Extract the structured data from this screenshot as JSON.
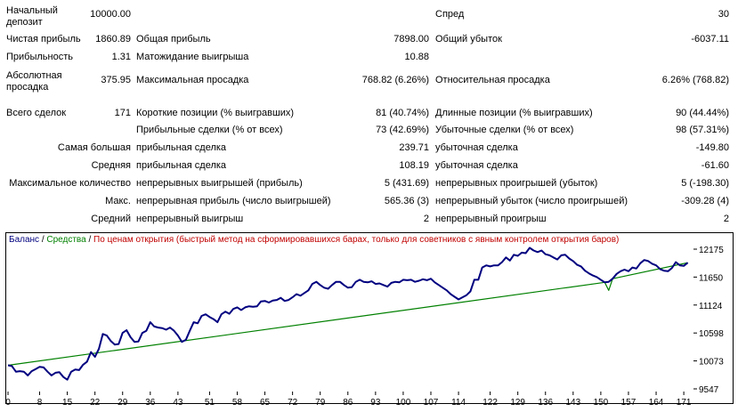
{
  "report": {
    "initial_deposit_label": [
      "Начальный",
      "депозит"
    ],
    "initial_deposit_value": "10000.00",
    "spread_label": "Спред",
    "spread_value": "30",
    "net_profit_label": "Чистая прибыль",
    "net_profit_value": "1860.89",
    "gross_profit_label": "Общая прибыль",
    "gross_profit_value": "7898.00",
    "gross_loss_label": "Общий убыток",
    "gross_loss_value": "-6037.11",
    "profit_factor_label": "Прибыльность",
    "profit_factor_value": "1.31",
    "expected_payoff_label": "Матожидание выигрыша",
    "expected_payoff_value": "10.88",
    "abs_drawdown_label": [
      "Абсолютная",
      "просадка"
    ],
    "abs_drawdown_value": "375.95",
    "max_drawdown_label": "Максимальная просадка",
    "max_drawdown_value": "768.82 (6.26%)",
    "rel_drawdown_label": "Относительная просадка",
    "rel_drawdown_value": "6.26% (768.82)",
    "total_trades_label": "Всего сделок",
    "total_trades_value": "171",
    "short_label": "Короткие позиции (% выигравших)",
    "short_value": "81 (40.74%)",
    "long_label": "Длинные позиции (% выигравших)",
    "long_value": "90 (44.44%)",
    "profit_trades_label": "Прибыльные сделки (% от всех)",
    "profit_trades_value": "73 (42.69%)",
    "loss_trades_label": "Убыточные сделки (% от всех)",
    "loss_trades_value": "98 (57.31%)",
    "largest_label": "Самая большая",
    "largest_profit_label": "прибыльная сделка",
    "largest_profit_value": "239.71",
    "largest_loss_label": "убыточная сделка",
    "largest_loss_value": "-149.80",
    "average_label": "Средняя",
    "average_profit_label": "прибыльная сделка",
    "average_profit_value": "108.19",
    "average_loss_label": "убыточная сделка",
    "average_loss_value": "-61.60",
    "max_count_label": "Максимальное количество",
    "max_consec_wins_label": "непрерывных выигрышей (прибыль)",
    "max_consec_wins_value": "5 (431.69)",
    "max_consec_losses_label": "непрерывных проигрышей (убыток)",
    "max_consec_losses_value": "5 (-198.30)",
    "max_label": "Макс.",
    "max_consec_profit_label": "непрерывная прибыль (число выигрышей)",
    "max_consec_profit_value": "565.36 (3)",
    "max_consec_loss_label": "непрерывный убыток (число проигрышей)",
    "max_consec_loss_value": "-309.28 (4)",
    "avg_label": "Средний",
    "avg_consec_wins_label": "непрерывный выигрыш",
    "avg_consec_wins_value": "2",
    "avg_consec_losses_label": "непрерывный проигрыш",
    "avg_consec_losses_value": "2"
  },
  "legend": {
    "balance": "Баланс",
    "separator": "/",
    "equity": "Средства",
    "method": "По ценам открытия (быстрый метод на сформировавшихся барах, только для советников с явным контролем открытия баров)"
  },
  "chart_data": {
    "type": "line",
    "x_ticks": [
      0,
      8,
      15,
      22,
      29,
      36,
      43,
      51,
      58,
      65,
      72,
      79,
      86,
      93,
      100,
      107,
      114,
      122,
      129,
      136,
      143,
      150,
      157,
      164,
      171
    ],
    "y_ticks": [
      12175,
      11650,
      11124,
      10598,
      10073,
      9547
    ],
    "ylim": [
      9547,
      12175
    ],
    "xlim": [
      0,
      173
    ],
    "colors": {
      "balance": "#000080",
      "equity": "#008000"
    },
    "series": [
      {
        "name": "Баланс",
        "points": [
          [
            0,
            9990
          ],
          [
            1,
            9975
          ],
          [
            2,
            9870
          ],
          [
            3,
            9880
          ],
          [
            4,
            9870
          ],
          [
            5,
            9800
          ],
          [
            6,
            9880
          ],
          [
            7,
            9920
          ],
          [
            8,
            9960
          ],
          [
            9,
            9950
          ],
          [
            10,
            9870
          ],
          [
            11,
            9800
          ],
          [
            12,
            9850
          ],
          [
            13,
            9860
          ],
          [
            14,
            9770
          ],
          [
            15,
            9720
          ],
          [
            16,
            9870
          ],
          [
            17,
            9910
          ],
          [
            18,
            9900
          ],
          [
            19,
            10000
          ],
          [
            20,
            10060
          ],
          [
            21,
            10240
          ],
          [
            22,
            10150
          ],
          [
            23,
            10300
          ],
          [
            24,
            10580
          ],
          [
            25,
            10550
          ],
          [
            26,
            10450
          ],
          [
            27,
            10380
          ],
          [
            28,
            10390
          ],
          [
            29,
            10600
          ],
          [
            30,
            10650
          ],
          [
            31,
            10520
          ],
          [
            32,
            10430
          ],
          [
            33,
            10440
          ],
          [
            34,
            10600
          ],
          [
            35,
            10640
          ],
          [
            36,
            10800
          ],
          [
            37,
            10720
          ],
          [
            38,
            10700
          ],
          [
            39,
            10690
          ],
          [
            40,
            10660
          ],
          [
            41,
            10700
          ],
          [
            42,
            10640
          ],
          [
            43,
            10550
          ],
          [
            44,
            10430
          ],
          [
            45,
            10470
          ],
          [
            46,
            10640
          ],
          [
            47,
            10800
          ],
          [
            48,
            10780
          ],
          [
            49,
            10920
          ],
          [
            50,
            10950
          ],
          [
            51,
            10900
          ],
          [
            52,
            10860
          ],
          [
            53,
            10800
          ],
          [
            54,
            10950
          ],
          [
            55,
            11000
          ],
          [
            56,
            10960
          ],
          [
            57,
            11050
          ],
          [
            58,
            11080
          ],
          [
            59,
            11030
          ],
          [
            60,
            11080
          ],
          [
            61,
            11100
          ],
          [
            62,
            11090
          ],
          [
            63,
            11100
          ],
          [
            64,
            11190
          ],
          [
            65,
            11200
          ],
          [
            66,
            11170
          ],
          [
            67,
            11210
          ],
          [
            68,
            11220
          ],
          [
            69,
            11260
          ],
          [
            70,
            11200
          ],
          [
            71,
            11220
          ],
          [
            72,
            11270
          ],
          [
            73,
            11330
          ],
          [
            74,
            11300
          ],
          [
            75,
            11350
          ],
          [
            76,
            11400
          ],
          [
            77,
            11520
          ],
          [
            78,
            11560
          ],
          [
            79,
            11500
          ],
          [
            80,
            11450
          ],
          [
            81,
            11430
          ],
          [
            82,
            11500
          ],
          [
            83,
            11560
          ],
          [
            84,
            11560
          ],
          [
            85,
            11500
          ],
          [
            86,
            11450
          ],
          [
            87,
            11460
          ],
          [
            88,
            11560
          ],
          [
            89,
            11600
          ],
          [
            90,
            11560
          ],
          [
            91,
            11550
          ],
          [
            92,
            11570
          ],
          [
            93,
            11520
          ],
          [
            94,
            11530
          ],
          [
            95,
            11500
          ],
          [
            96,
            11470
          ],
          [
            97,
            11540
          ],
          [
            98,
            11560
          ],
          [
            99,
            11550
          ],
          [
            100,
            11600
          ],
          [
            101,
            11590
          ],
          [
            102,
            11600
          ],
          [
            103,
            11560
          ],
          [
            104,
            11580
          ],
          [
            105,
            11610
          ],
          [
            106,
            11590
          ],
          [
            107,
            11620
          ],
          [
            108,
            11550
          ],
          [
            109,
            11500
          ],
          [
            110,
            11450
          ],
          [
            111,
            11400
          ],
          [
            112,
            11330
          ],
          [
            113,
            11280
          ],
          [
            114,
            11230
          ],
          [
            115,
            11270
          ],
          [
            116,
            11310
          ],
          [
            117,
            11380
          ],
          [
            118,
            11600
          ],
          [
            119,
            11600
          ],
          [
            120,
            11830
          ],
          [
            121,
            11870
          ],
          [
            122,
            11850
          ],
          [
            123,
            11870
          ],
          [
            124,
            11870
          ],
          [
            125,
            11930
          ],
          [
            126,
            12020
          ],
          [
            127,
            11960
          ],
          [
            128,
            12070
          ],
          [
            129,
            12050
          ],
          [
            130,
            12110
          ],
          [
            131,
            12100
          ],
          [
            132,
            12200
          ],
          [
            133,
            12150
          ],
          [
            134,
            12120
          ],
          [
            135,
            12150
          ],
          [
            136,
            12080
          ],
          [
            137,
            12060
          ],
          [
            138,
            12020
          ],
          [
            139,
            11980
          ],
          [
            140,
            12060
          ],
          [
            141,
            12070
          ],
          [
            142,
            12000
          ],
          [
            143,
            11950
          ],
          [
            144,
            11880
          ],
          [
            145,
            11850
          ],
          [
            146,
            11770
          ],
          [
            147,
            11720
          ],
          [
            148,
            11680
          ],
          [
            149,
            11650
          ],
          [
            150,
            11600
          ],
          [
            151,
            11550
          ],
          [
            152,
            11560
          ],
          [
            153,
            11620
          ],
          [
            154,
            11710
          ],
          [
            155,
            11760
          ],
          [
            156,
            11790
          ],
          [
            157,
            11760
          ],
          [
            158,
            11830
          ],
          [
            159,
            11810
          ],
          [
            160,
            11910
          ],
          [
            161,
            11970
          ],
          [
            162,
            11950
          ],
          [
            163,
            11900
          ],
          [
            164,
            11870
          ],
          [
            165,
            11800
          ],
          [
            166,
            11770
          ],
          [
            167,
            11760
          ],
          [
            168,
            11820
          ],
          [
            169,
            11930
          ],
          [
            170,
            11870
          ],
          [
            171,
            11860
          ],
          [
            172,
            11920
          ]
        ]
      },
      {
        "name": "Средства",
        "points": [
          [
            0,
            9990
          ],
          [
            151,
            11550
          ],
          [
            152,
            11400
          ],
          [
            153,
            11620
          ],
          [
            172,
            11920
          ]
        ]
      }
    ]
  }
}
